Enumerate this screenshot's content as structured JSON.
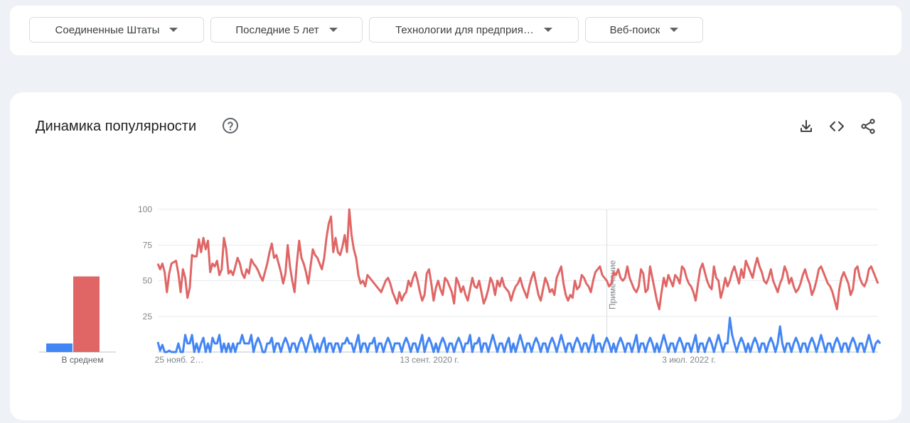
{
  "filters": {
    "region": "Соединенные Штаты",
    "period": "Последние 5 лет",
    "category": "Технологии для предприя…",
    "search_type": "Веб-поиск"
  },
  "chart_card": {
    "title": "Динамика популярности",
    "icons": {
      "help": "help-circle-icon",
      "download": "download-icon",
      "embed": "code-icon",
      "share": "share-icon"
    }
  },
  "chart_data": {
    "type": "line",
    "ylim": [
      0,
      100
    ],
    "yticks": [
      "100",
      "75",
      "50",
      "25"
    ],
    "x_tick_labels": [
      "25 нояб. 2…",
      "13 сент. 2020 г.",
      "3 июл. 2022 г."
    ],
    "annotation": "Примечание",
    "averages_label": "В среднем",
    "colors": {
      "red": "#e06666",
      "blue": "#4285f4"
    },
    "series": [
      {
        "color": "red",
        "average": 53,
        "values": [
          62,
          58,
          62,
          56,
          42,
          55,
          62,
          63,
          64,
          55,
          42,
          58,
          52,
          38,
          45,
          68,
          67,
          67,
          79,
          70,
          80,
          72,
          78,
          56,
          62,
          60,
          64,
          54,
          58,
          80,
          72,
          55,
          57,
          54,
          60,
          66,
          62,
          55,
          52,
          58,
          55,
          65,
          62,
          60,
          57,
          53,
          50,
          56,
          62,
          70,
          76,
          66,
          68,
          62,
          56,
          48,
          55,
          75,
          60,
          50,
          42,
          62,
          78,
          66,
          62,
          56,
          48,
          60,
          72,
          68,
          66,
          62,
          58,
          66,
          80,
          90,
          95,
          70,
          80,
          70,
          68,
          74,
          82,
          70,
          100,
          82,
          72,
          66,
          54,
          48,
          50,
          46,
          54,
          52,
          50,
          48,
          46,
          44,
          42,
          46,
          50,
          52,
          48,
          42,
          38,
          34,
          42,
          36,
          40,
          42,
          50,
          46,
          52,
          56,
          50,
          42,
          36,
          40,
          55,
          58,
          48,
          36,
          45,
          50,
          44,
          40,
          52,
          50,
          46,
          42,
          34,
          52,
          48,
          42,
          46,
          40,
          36,
          44,
          52,
          46,
          45,
          50,
          42,
          34,
          38,
          44,
          52,
          48,
          40,
          50,
          46,
          52,
          46,
          44,
          42,
          36,
          42,
          46,
          48,
          52,
          46,
          42,
          38,
          46,
          52,
          56,
          48,
          40,
          36,
          44,
          52,
          48,
          42,
          44,
          40,
          52,
          56,
          60,
          48,
          40,
          36,
          40,
          38,
          50,
          44,
          46,
          54,
          52,
          48,
          46,
          42,
          50,
          56,
          58,
          60,
          54,
          52,
          50,
          46,
          48,
          56,
          54,
          58,
          52,
          50,
          52,
          60,
          52,
          48,
          44,
          42,
          46,
          58,
          55,
          42,
          44,
          60,
          52,
          44,
          36,
          30,
          42,
          52,
          46,
          54,
          50,
          46,
          54,
          52,
          48,
          60,
          58,
          52,
          48,
          46,
          42,
          36,
          48,
          58,
          62,
          56,
          50,
          46,
          44,
          60,
          52,
          50,
          38,
          44,
          52,
          46,
          50,
          56,
          60,
          54,
          48,
          58,
          52,
          64,
          60,
          56,
          52,
          60,
          66,
          60,
          56,
          50,
          48,
          52,
          58,
          50,
          46,
          42,
          48,
          52,
          60,
          56,
          48,
          52,
          46,
          42,
          44,
          48,
          54,
          58,
          52,
          48,
          40,
          44,
          50,
          58,
          60,
          56,
          52,
          48,
          46,
          42,
          36,
          30,
          44,
          52,
          56,
          52,
          48,
          40,
          44,
          58,
          60,
          52,
          48,
          46,
          50,
          58,
          60,
          56,
          52,
          48
        ]
      },
      {
        "color": "blue",
        "average": 6,
        "values": [
          7,
          1,
          5,
          0,
          0,
          1,
          0,
          0,
          0,
          6,
          0,
          0,
          12,
          6,
          6,
          12,
          0,
          6,
          0,
          6,
          10,
          0,
          6,
          0,
          10,
          6,
          6,
          12,
          0,
          6,
          0,
          6,
          0,
          6,
          0,
          6,
          6,
          12,
          6,
          6,
          6,
          12,
          0,
          6,
          10,
          6,
          0,
          0,
          6,
          6,
          10,
          0,
          6,
          6,
          0,
          6,
          10,
          6,
          0,
          6,
          6,
          0,
          6,
          10,
          6,
          0,
          6,
          12,
          6,
          0,
          6,
          0,
          6,
          10,
          0,
          6,
          6,
          0,
          6,
          6,
          0,
          6,
          6,
          10,
          6,
          6,
          0,
          6,
          12,
          0,
          6,
          6,
          0,
          6,
          6,
          10,
          0,
          6,
          6,
          0,
          6,
          10,
          6,
          0,
          6,
          6,
          6,
          0,
          6,
          10,
          6,
          0,
          6,
          6,
          0,
          6,
          12,
          0,
          6,
          10,
          6,
          0,
          6,
          0,
          6,
          10,
          6,
          0,
          6,
          6,
          0,
          6,
          10,
          6,
          0,
          6,
          6,
          12,
          0,
          6,
          6,
          10,
          0,
          6,
          6,
          0,
          6,
          12,
          6,
          0,
          6,
          6,
          0,
          6,
          10,
          0,
          6,
          0,
          6,
          12,
          6,
          0,
          6,
          6,
          0,
          6,
          10,
          6,
          0,
          6,
          6,
          0,
          6,
          10,
          6,
          0,
          6,
          12,
          6,
          0,
          6,
          6,
          0,
          6,
          10,
          6,
          0,
          6,
          6,
          0,
          6,
          12,
          0,
          6,
          6,
          0,
          6,
          10,
          6,
          0,
          6,
          0,
          6,
          10,
          6,
          0,
          6,
          6,
          0,
          6,
          12,
          0,
          6,
          6,
          0,
          6,
          10,
          6,
          0,
          6,
          0,
          6,
          12,
          6,
          0,
          6,
          6,
          0,
          6,
          10,
          6,
          0,
          6,
          6,
          0,
          6,
          12,
          0,
          6,
          6,
          0,
          6,
          10,
          6,
          0,
          6,
          12,
          6,
          0,
          6,
          6,
          24,
          12,
          6,
          0,
          6,
          10,
          6,
          0,
          6,
          0,
          6,
          10,
          6,
          0,
          6,
          6,
          0,
          6,
          10,
          6,
          0,
          6,
          18,
          6,
          0,
          6,
          6,
          0,
          6,
          10,
          6,
          0,
          6,
          6,
          0,
          6,
          10,
          6,
          0,
          6,
          12,
          6,
          0,
          6,
          6,
          0,
          6,
          10,
          6,
          0,
          6,
          6,
          0,
          6,
          10,
          6,
          0,
          6,
          6,
          0,
          6,
          12,
          6,
          0,
          6,
          8,
          6
        ]
      }
    ]
  }
}
